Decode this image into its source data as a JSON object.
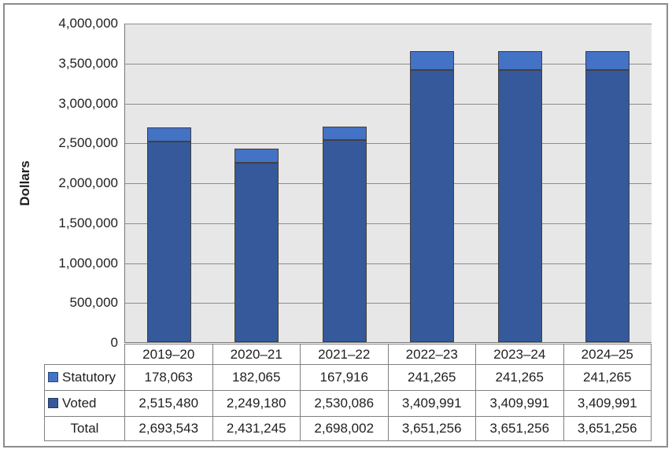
{
  "figure": {
    "ylabel": "Dollars"
  },
  "theme": {
    "plot_background": "#E7E7E7",
    "gridline_color": "#8C8C8C",
    "axis_color": "#767676",
    "figure_border_color": "#8C8C8C",
    "table_border_color": "#7F7F7F",
    "bar_border_color": "#404040",
    "text_color": "#1F1F1F",
    "statutory_color": "#4472C4",
    "voted_color": "#35599B"
  },
  "chart_data": {
    "type": "bar",
    "stacked": true,
    "title": "",
    "xlabel": "",
    "ylabel": "Dollars",
    "grid": true,
    "legend_position": "table-row-labels",
    "ylim": [
      0,
      4000000
    ],
    "ytick_step": 500000,
    "ytick_labels": [
      "0",
      "500,000",
      "1,000,000",
      "1,500,000",
      "2,000,000",
      "2,500,000",
      "3,000,000",
      "3,500,000",
      "4,000,000"
    ],
    "categories": [
      "2019–20",
      "2020–21",
      "2021–22",
      "2022–23",
      "2023–24",
      "2024–25"
    ],
    "series": [
      {
        "name": "Statutory",
        "color": "#4472C4",
        "values": [
          178063,
          182065,
          167916,
          241265,
          241265,
          241265
        ],
        "formatted": [
          "178,063",
          "182,065",
          "167,916",
          "241,265",
          "241,265",
          "241,265"
        ]
      },
      {
        "name": "Voted",
        "color": "#35599B",
        "values": [
          2515480,
          2249180,
          2530086,
          3409991,
          3409991,
          3409991
        ],
        "formatted": [
          "2,515,480",
          "2,249,180",
          "2,530,086",
          "3,409,991",
          "3,409,991",
          "3,409,991"
        ]
      }
    ],
    "total_row": {
      "name": "Total",
      "values": [
        2693543,
        2431245,
        2698002,
        3651256,
        3651256,
        3651256
      ],
      "formatted": [
        "2,693,543",
        "2,431,245",
        "2,698,002",
        "3,651,256",
        "3,651,256",
        "3,651,256"
      ]
    }
  }
}
